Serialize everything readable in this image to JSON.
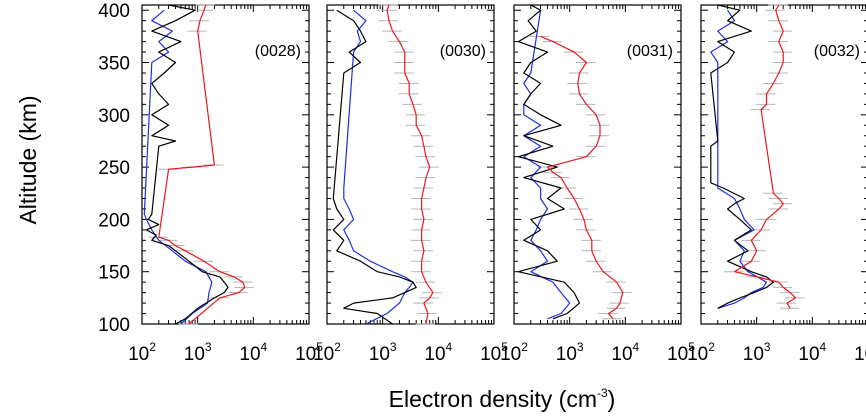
{
  "chart_data": {
    "type": "line",
    "ylabel": "Altitude (km)",
    "xlabel_main": "Electron density (cm",
    "xlabel_sup": "-3",
    "xlabel_close": ")",
    "x_scale": "log",
    "xlim": [
      100,
      100000
    ],
    "ylim": [
      100,
      405
    ],
    "yticks": [
      100,
      150,
      200,
      250,
      300,
      350,
      400
    ],
    "xtick_mantissa": "10",
    "xtick_exponents": [
      "2",
      "3",
      "4",
      "5"
    ],
    "colors": {
      "red": "#e8191c",
      "black": "#000000",
      "blue": "#1f2de0",
      "gray": "#b4b4b4"
    },
    "panels": [
      {
        "label": "(0028)",
        "red": {
          "alt": [
            100,
            125,
            130,
            135,
            140,
            145,
            150,
            160,
            170,
            175,
            180,
            183,
            248,
            250,
            252,
            380,
            390,
            400,
            405
          ],
          "n": [
            700,
            2500,
            5500,
            7000,
            6500,
            4500,
            2500,
            1300,
            600,
            400,
            300,
            200,
            300,
            800,
            2000,
            1000,
            1100,
            1300,
            1400
          ]
        },
        "black": {
          "alt": [
            100,
            105,
            115,
            125,
            130,
            135,
            140,
            145,
            150,
            160,
            170,
            175,
            180,
            185,
            190,
            195,
            200,
            205,
            270,
            275,
            280,
            290,
            300,
            310,
            320,
            330,
            340,
            350,
            360,
            370,
            380,
            390,
            400,
            405
          ],
          "n": [
            400,
            600,
            1000,
            2000,
            3000,
            3500,
            3000,
            2500,
            1200,
            700,
            400,
            300,
            150,
            180,
            120,
            200,
            130,
            150,
            200,
            400,
            150,
            300,
            150,
            300,
            200,
            150,
            250,
            400,
            200,
            500,
            150,
            400,
            900,
            300
          ]
        },
        "blue": {
          "alt": [
            100,
            110,
            120,
            130,
            140,
            150,
            160,
            170,
            180,
            190,
            200,
            205,
            350,
            360,
            370,
            380,
            390,
            400
          ],
          "n": [
            500,
            800,
            1500,
            1600,
            1800,
            1400,
            600,
            350,
            200,
            150,
            120,
            110,
            150,
            300,
            200,
            350,
            150,
            250
          ]
        }
      },
      {
        "label": "(0030)",
        "red": {
          "alt": [
            100,
            110,
            120,
            125,
            130,
            140,
            150,
            160,
            170,
            180,
            190,
            200,
            210,
            220,
            230,
            240,
            250,
            260,
            270,
            280,
            290,
            300,
            310,
            320,
            330,
            340,
            350,
            360,
            370,
            380,
            390,
            400,
            405
          ],
          "n": [
            6000,
            6500,
            5500,
            7000,
            8000,
            6000,
            5000,
            5000,
            5500,
            5000,
            5000,
            5500,
            5000,
            5000,
            5500,
            6000,
            7000,
            6000,
            5500,
            5000,
            4000,
            4000,
            3500,
            3000,
            3000,
            2500,
            2500,
            2500,
            2000,
            1500,
            1300,
            1200,
            1300
          ]
        },
        "black": {
          "alt": [
            100,
            110,
            115,
            120,
            125,
            130,
            135,
            140,
            145,
            150,
            160,
            170,
            180,
            190,
            200,
            210,
            220,
            340,
            350,
            360,
            370,
            380,
            390,
            400
          ],
          "n": [
            1500,
            800,
            200,
            300,
            1500,
            2500,
            4000,
            3500,
            2000,
            800,
            400,
            150,
            200,
            130,
            200,
            150,
            130,
            200,
            400,
            250,
            500,
            400,
            300,
            150
          ]
        },
        "blue": {
          "alt": [
            100,
            110,
            120,
            130,
            135,
            140,
            145,
            150,
            160,
            170,
            180,
            190,
            200,
            210,
            220,
            230,
            360,
            370,
            380,
            390,
            400
          ],
          "n": [
            500,
            1200,
            2000,
            2500,
            3000,
            3500,
            2500,
            1500,
            600,
            300,
            250,
            200,
            300,
            250,
            200,
            200,
            300,
            400,
            350,
            500,
            300
          ]
        }
      },
      {
        "label": "(0031)",
        "red": {
          "alt": [
            105,
            110,
            115,
            120,
            130,
            140,
            150,
            160,
            170,
            180,
            190,
            200,
            210,
            220,
            230,
            240,
            245,
            250,
            260,
            270,
            280,
            290,
            300,
            310,
            320,
            330,
            340,
            350,
            360,
            370,
            375
          ],
          "n": [
            6000,
            5000,
            7000,
            8000,
            9000,
            7000,
            4000,
            3000,
            2500,
            2500,
            2000,
            1800,
            1500,
            1200,
            900,
            700,
            500,
            400,
            2000,
            3000,
            3500,
            3500,
            3000,
            2000,
            1500,
            1400,
            1500,
            2000,
            1200,
            500,
            300
          ]
        },
        "black": {
          "alt": [
            105,
            110,
            120,
            130,
            140,
            150,
            160,
            170,
            180,
            190,
            200,
            210,
            220,
            230,
            240,
            250,
            260,
            270,
            280,
            290,
            300,
            310,
            320,
            330,
            340,
            350,
            360,
            370,
            380,
            390,
            400,
            405
          ],
          "n": [
            500,
            900,
            1500,
            1200,
            800,
            120,
            600,
            400,
            150,
            300,
            200,
            800,
            400,
            700,
            150,
            600,
            120,
            500,
            150,
            700,
            300,
            150,
            200,
            300,
            150,
            200,
            400,
            120,
            250,
            180,
            300,
            200
          ]
        },
        "blue": {
          "alt": [
            105,
            110,
            120,
            130,
            140,
            150,
            160,
            170,
            180,
            190,
            200,
            210,
            220,
            230,
            240,
            250,
            260,
            270,
            280,
            290,
            300,
            310,
            320,
            330,
            340,
            400
          ],
          "n": [
            400,
            700,
            1000,
            700,
            500,
            200,
            400,
            300,
            200,
            250,
            300,
            400,
            300,
            300,
            200,
            300,
            150,
            300,
            150,
            300,
            150,
            150,
            200,
            150,
            200,
            300
          ]
        }
      },
      {
        "label": "(0032)",
        "red": {
          "alt": [
            115,
            120,
            125,
            130,
            135,
            140,
            145,
            150,
            160,
            170,
            180,
            190,
            200,
            210,
            215,
            220,
            225,
            305,
            310,
            320,
            330,
            340,
            350,
            360,
            370,
            380,
            390,
            400,
            405
          ],
          "n": [
            4000,
            3500,
            5000,
            4000,
            3000,
            2500,
            1000,
            400,
            800,
            1000,
            800,
            1200,
            1500,
            2500,
            3000,
            2500,
            2000,
            1200,
            1500,
            1500,
            2000,
            2500,
            3000,
            3000,
            2500,
            3000,
            2500,
            2200,
            2500
          ]
        },
        "black": {
          "alt": [
            115,
            120,
            125,
            130,
            135,
            140,
            145,
            150,
            160,
            170,
            180,
            190,
            200,
            210,
            215,
            220,
            230,
            235,
            270,
            275,
            340,
            350,
            360,
            370,
            380,
            390,
            400,
            405
          ],
          "n": [
            200,
            300,
            500,
            900,
            1500,
            2000,
            1500,
            800,
            300,
            700,
            400,
            800,
            500,
            300,
            400,
            600,
            250,
            150,
            150,
            200,
            150,
            300,
            400,
            200,
            800,
            300,
            500,
            200
          ]
        },
        "blue": {
          "alt": [
            115,
            120,
            125,
            130,
            135,
            140,
            150,
            160,
            170,
            180,
            190,
            200,
            210,
            220,
            230,
            350,
            360,
            370,
            380,
            390,
            400
          ],
          "n": [
            200,
            400,
            600,
            800,
            1300,
            1500,
            700,
            500,
            600,
            400,
            900,
            600,
            500,
            400,
            200,
            200,
            150,
            300,
            200,
            400,
            300
          ]
        }
      }
    ]
  }
}
